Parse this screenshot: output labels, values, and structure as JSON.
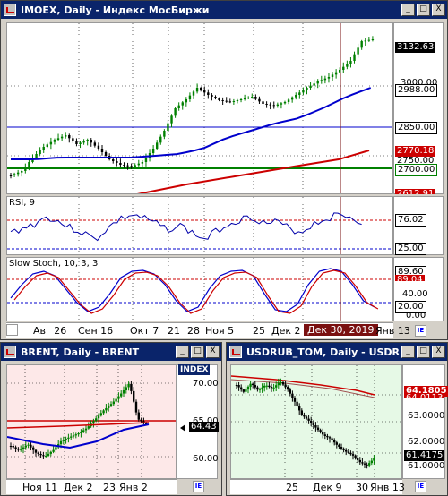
{
  "main": {
    "title": "IMOEX, Daily - Индекс МосБиржи",
    "buttons": [
      "_",
      "□",
      "X"
    ],
    "price_labels": [
      {
        "text": "3132.63",
        "bg": "#000000",
        "fg": "#ffffff"
      },
      {
        "text": "2988.00",
        "bg": "#ffffff",
        "fg": "#000000"
      },
      {
        "text": "2850.00",
        "bg": "#ffffff",
        "fg": "#000000"
      },
      {
        "text": "2770.18",
        "bg": "#cc0000",
        "fg": "#ffffff"
      },
      {
        "text": "2750.00",
        "bg": "#ffffff",
        "fg": "#000000"
      },
      {
        "text": "2700.00",
        "bg": "#ffffff",
        "fg": "#000000"
      },
      {
        "text": "2612.91",
        "bg": "#cc0000",
        "fg": "#ffffff"
      }
    ],
    "price_axis": [
      "3000.00",
      "2750.00"
    ],
    "rsi": {
      "title": "RSI, 9",
      "labels": [
        "76.02",
        "25.00"
      ]
    },
    "stoch": {
      "title": "Slow Stoch, 10, 3, 3",
      "labels": [
        "89.60",
        "89.04",
        "20.00"
      ],
      "axis": [
        "40.00",
        "0.00"
      ]
    },
    "x_labels": [
      "Авг 26",
      "Сен 16",
      "Окт 7",
      "21",
      "28",
      "Ноя 5",
      "25",
      "Дек 2",
      "Дек 30, 2019",
      "Янв 13"
    ],
    "date_label": "Дек 30, 2019"
  },
  "brent": {
    "title": "BRENT, Daily - BRENT",
    "index_label": "INDEX",
    "buttons": [
      "_",
      "□",
      "X"
    ],
    "price_labels": [
      "70.00",
      "65.00",
      "64.43",
      "60.00"
    ],
    "x_labels": [
      "Ноя 11",
      "Дек 2",
      "23",
      "Янв 2"
    ]
  },
  "usd": {
    "title": "USDRUB_TOM, Daily - USDR...",
    "buttons": [
      "_",
      "□",
      "X"
    ],
    "price_labels": [
      "64.1805",
      "64.0113",
      "63.0000",
      "62.0000",
      "61.4175",
      "61.0000"
    ],
    "x_labels": [
      "25",
      "Дек 9",
      "30",
      "Янв 13"
    ]
  },
  "colors": {
    "titlebar": "#0a246a",
    "candle_up": "#008000",
    "candle_down": "#000000",
    "ma_blue": "#0000cc",
    "ma_red": "#cc0000",
    "hline_green": "#008000",
    "bg_brent": "#fde8e8",
    "bg_usd": "#e6f9e6"
  }
}
